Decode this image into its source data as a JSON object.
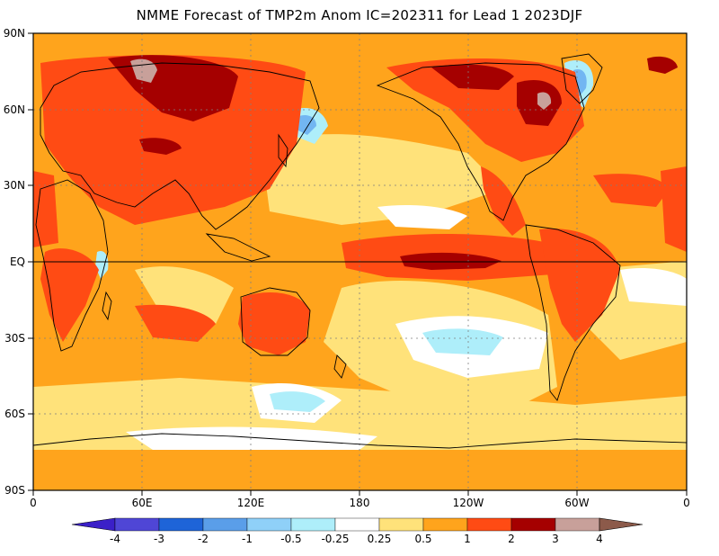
{
  "title": "NMME Forecast of TMP2m Anom IC=202311 for Lead 1 2023DJF",
  "map": {
    "lat_labels": [
      "90N",
      "60N",
      "30N",
      "EQ",
      "30S",
      "60S",
      "90S"
    ],
    "lon_labels": [
      "0",
      "60E",
      "120E",
      "180",
      "120W",
      "60W",
      "0"
    ],
    "colors": {
      "near_zero": "#ffffff",
      "weak_warm": "#ffe27a",
      "warm": "#ffa41c",
      "warmer": "#ff4b14",
      "hot": "#a50000",
      "very_hot": "#c8a09a",
      "weak_cool": "#aeeefa",
      "cool": "#72b6f2"
    }
  },
  "colorbar": {
    "labels": [
      "-4",
      "-3",
      "-2",
      "-1",
      "-0.5",
      "-0.25",
      "0.25",
      "0.5",
      "1",
      "2",
      "3",
      "4"
    ],
    "colors": [
      "#3b20c8",
      "#4f46d6",
      "#1e64d8",
      "#5a9ee9",
      "#8fd0f8",
      "#aeeefa",
      "#ffffff",
      "#ffe27a",
      "#ffa41c",
      "#ff4b14",
      "#a50000",
      "#c8a09a",
      "#8c5a4a"
    ]
  }
}
